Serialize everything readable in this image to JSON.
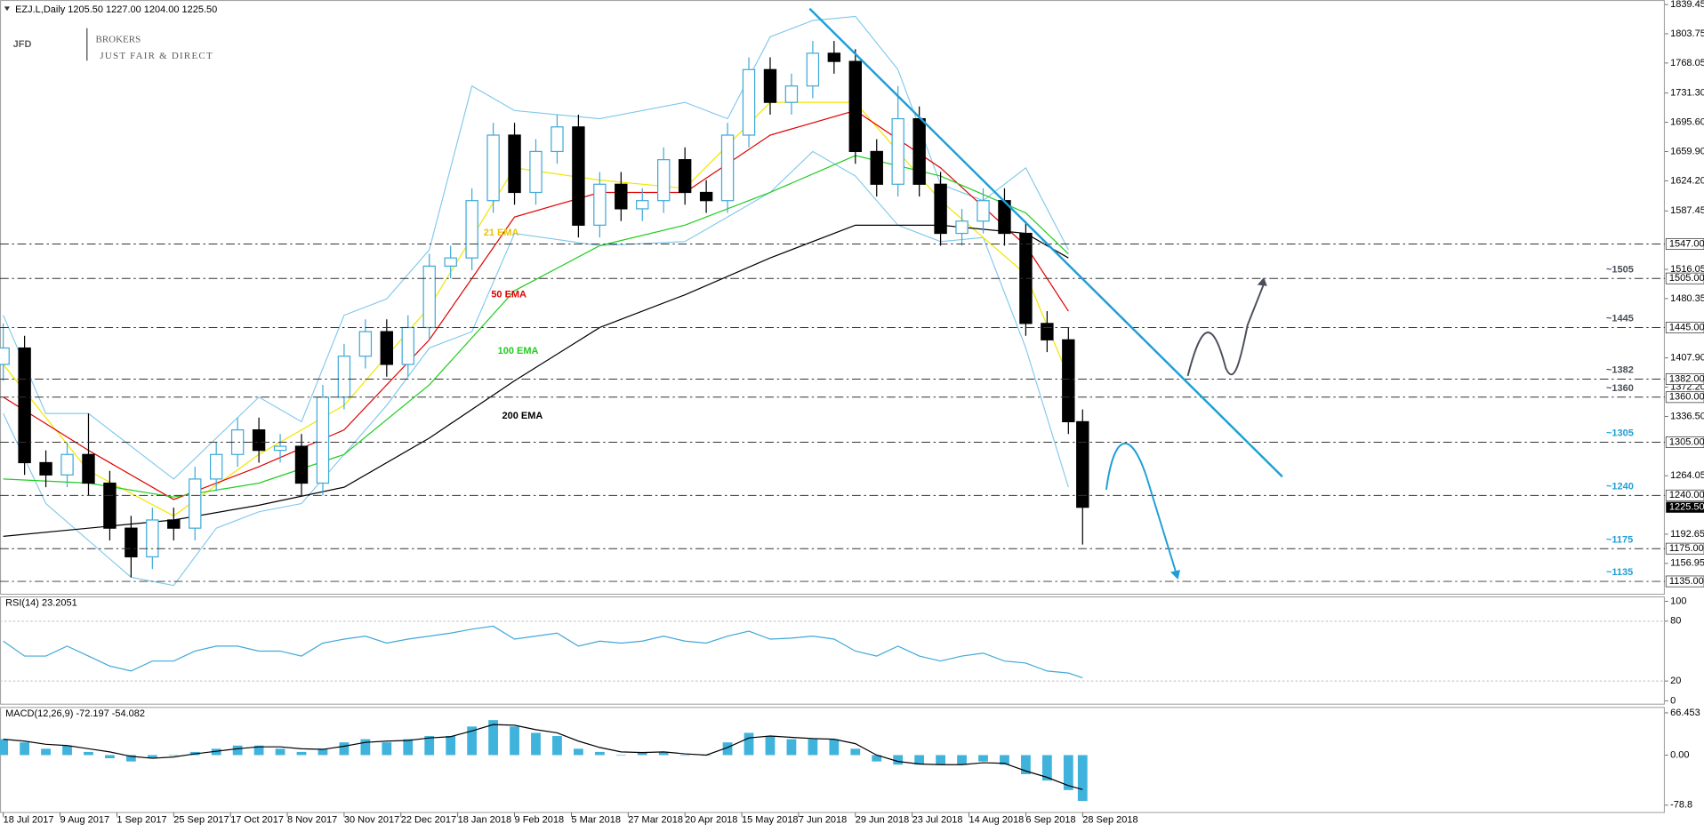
{
  "header": "EZJ.L,Daily  1205.50 1227.00 1204.00 1225.50",
  "logo": {
    "main": "JFD",
    "brand": "BROKERS",
    "tagline": "JUST FAIR & DIRECT"
  },
  "chart_data": [
    {
      "type": "candlestick",
      "x": [
        0,
        6,
        12,
        18,
        24,
        30,
        36,
        42,
        48,
        54,
        60,
        66,
        72,
        78,
        84,
        90,
        96,
        102,
        108,
        114,
        120,
        126,
        132,
        138,
        144,
        150,
        156,
        162,
        168,
        174,
        180,
        186,
        192,
        198,
        204,
        210,
        216,
        222,
        228,
        234,
        240,
        246,
        252,
        258,
        264,
        270,
        276,
        282,
        288,
        294,
        300,
        304
      ],
      "open": [
        1400,
        1420,
        1280,
        1265,
        1290,
        1255,
        1200,
        1165,
        1210,
        1200,
        1260,
        1290,
        1320,
        1295,
        1300,
        1255,
        1360,
        1410,
        1440,
        1400,
        1445,
        1520,
        1530,
        1600,
        1680,
        1610,
        1660,
        1690,
        1570,
        1620,
        1590,
        1600,
        1650,
        1610,
        1600,
        1680,
        1760,
        1720,
        1740,
        1780,
        1770,
        1660,
        1620,
        1700,
        1620,
        1560,
        1575,
        1600,
        1560,
        1450,
        1430,
        1330
      ],
      "high": [
        1450,
        1435,
        1295,
        1305,
        1340,
        1270,
        1215,
        1225,
        1225,
        1275,
        1305,
        1335,
        1335,
        1315,
        1315,
        1375,
        1425,
        1455,
        1455,
        1460,
        1535,
        1545,
        1615,
        1695,
        1695,
        1675,
        1705,
        1705,
        1635,
        1635,
        1615,
        1665,
        1665,
        1625,
        1695,
        1775,
        1775,
        1755,
        1795,
        1795,
        1785,
        1675,
        1740,
        1715,
        1635,
        1590,
        1615,
        1615,
        1575,
        1465,
        1445,
        1345
      ],
      "low": [
        1380,
        1265,
        1250,
        1250,
        1240,
        1185,
        1140,
        1150,
        1185,
        1185,
        1245,
        1275,
        1280,
        1280,
        1240,
        1240,
        1345,
        1395,
        1385,
        1385,
        1430,
        1505,
        1515,
        1585,
        1595,
        1595,
        1645,
        1555,
        1555,
        1575,
        1575,
        1585,
        1595,
        1585,
        1585,
        1665,
        1705,
        1705,
        1725,
        1755,
        1645,
        1605,
        1605,
        1605,
        1545,
        1545,
        1560,
        1545,
        1435,
        1415,
        1315,
        1180
      ],
      "close": [
        1420,
        1280,
        1265,
        1290,
        1255,
        1200,
        1165,
        1210,
        1200,
        1260,
        1290,
        1320,
        1295,
        1300,
        1255,
        1360,
        1410,
        1440,
        1400,
        1445,
        1520,
        1530,
        1600,
        1680,
        1610,
        1660,
        1690,
        1570,
        1620,
        1590,
        1600,
        1650,
        1610,
        1600,
        1680,
        1760,
        1720,
        1740,
        1780,
        1770,
        1660,
        1620,
        1700,
        1620,
        1560,
        1575,
        1600,
        1560,
        1450,
        1430,
        1330,
        1225.5
      ],
      "up_color": "#3fa9d8",
      "down_color": "#000000",
      "xlim": [
        0,
        468
      ],
      "xticks": [
        {
          "value": 0,
          "label": "18 Jul 2017"
        },
        {
          "value": 16,
          "label": "9 Aug 2017"
        },
        {
          "value": 32,
          "label": "1 Sep 2017"
        },
        {
          "value": 48,
          "label": "25 Sep 2017"
        },
        {
          "value": 64,
          "label": "17 Oct 2017"
        },
        {
          "value": 80,
          "label": "8 Nov 2017"
        },
        {
          "value": 96,
          "label": "30 Nov 2017"
        },
        {
          "value": 112,
          "label": "22 Dec 2017"
        },
        {
          "value": 128,
          "label": "18 Jan 2018"
        },
        {
          "value": 144,
          "label": "9 Feb 2018"
        },
        {
          "value": 160,
          "label": "5 Mar 2018"
        },
        {
          "value": 176,
          "label": "27 Mar 2018"
        },
        {
          "value": 192,
          "label": "20 Apr 2018"
        },
        {
          "value": 208,
          "label": "15 May 2018"
        },
        {
          "value": 224,
          "label": "7 Jun 2018"
        },
        {
          "value": 240,
          "label": "29 Jun 2018"
        },
        {
          "value": 256,
          "label": "23 Jul 2018"
        },
        {
          "value": 272,
          "label": "14 Aug 2018"
        },
        {
          "value": 288,
          "label": "6 Sep 2018"
        },
        {
          "value": 304,
          "label": "28 Sep 2018"
        }
      ],
      "ylim": [
        1120,
        1845
      ],
      "yticks": [
        1839.45,
        1803.75,
        1768.05,
        {
          "value": 1731.3,
          "label": "1731.30"
        },
        {
          "value": 1695.6,
          "label": "1695.60"
        },
        {
          "value": 1659.9,
          "label": "1659.90"
        },
        {
          "value": 1624.2,
          "label": "1624.20"
        },
        1587.45,
        1516.05,
        1480.35,
        {
          "value": 1407.9,
          "label": "1407.90"
        },
        {
          "value": 1372.2,
          "label": "1372.20"
        },
        {
          "value": 1336.5,
          "label": "1336.50"
        },
        1264.05,
        1192.65,
        1156.95
      ],
      "lines": [
        {
          "name": "21 EMA",
          "color": "#f2e600",
          "x": [
            0,
            24,
            48,
            72,
            96,
            120,
            144,
            168,
            192,
            216,
            240,
            264,
            288,
            300
          ],
          "values": [
            1400,
            1270,
            1215,
            1290,
            1350,
            1470,
            1640,
            1625,
            1615,
            1720,
            1720,
            1600,
            1510,
            1385
          ]
        },
        {
          "name": "50 EMA",
          "color": "#e00000",
          "x": [
            0,
            24,
            48,
            72,
            96,
            120,
            144,
            168,
            192,
            216,
            240,
            264,
            288,
            300
          ],
          "values": [
            1360,
            1295,
            1235,
            1275,
            1320,
            1430,
            1580,
            1610,
            1610,
            1680,
            1710,
            1640,
            1545,
            1465
          ]
        },
        {
          "name": "100 EMA",
          "color": "#22cc22",
          "x": [
            0,
            24,
            48,
            72,
            96,
            120,
            144,
            168,
            192,
            216,
            240,
            264,
            288,
            300
          ],
          "values": [
            1260,
            1255,
            1238,
            1255,
            1290,
            1375,
            1490,
            1545,
            1570,
            1610,
            1655,
            1630,
            1585,
            1535
          ]
        },
        {
          "name": "200 EMA",
          "color": "#000000",
          "x": [
            0,
            24,
            48,
            72,
            96,
            120,
            144,
            168,
            192,
            216,
            240,
            264,
            288,
            300
          ],
          "values": [
            1190,
            1200,
            1210,
            1228,
            1250,
            1310,
            1380,
            1445,
            1485,
            1530,
            1570,
            1570,
            1560,
            1530
          ]
        }
      ],
      "bands": [
        {
          "color": "#7cc6ea",
          "x": [
            0,
            12,
            24,
            36,
            48,
            72,
            84,
            96,
            108,
            120,
            132,
            144,
            168,
            192,
            204,
            216,
            228,
            240,
            252,
            264,
            276,
            288,
            300
          ],
          "values": [
            1460,
            1340,
            1340,
            1300,
            1260,
            1360,
            1330,
            1460,
            1480,
            1540,
            1740,
            1710,
            1700,
            1720,
            1700,
            1800,
            1820,
            1825,
            1760,
            1620,
            1600,
            1640,
            1540
          ]
        },
        {
          "color": "#7cc6ea",
          "x": [
            0,
            12,
            36,
            48,
            60,
            72,
            84,
            96,
            108,
            120,
            132,
            144,
            168,
            192,
            216,
            228,
            240,
            252,
            264,
            276,
            288,
            300
          ],
          "values": [
            1340,
            1230,
            1140,
            1130,
            1200,
            1220,
            1230,
            1290,
            1350,
            1420,
            1440,
            1560,
            1545,
            1550,
            1610,
            1660,
            1630,
            1570,
            1550,
            1555,
            1420,
            1250
          ]
        }
      ],
      "levels": [
        {
          "value": 1547,
          "label": "1547.00"
        },
        {
          "value": 1505,
          "label": "1505.00",
          "note": "~1505",
          "note_color": "#4a4f5a"
        },
        {
          "value": 1445,
          "label": "1445.00",
          "note": "~1445",
          "note_color": "#4a4f5a"
        },
        {
          "value": 1382,
          "label": "1382.00",
          "note": "~1382",
          "note_color": "#4a4f5a"
        },
        {
          "value": 1360,
          "label": "1360.00",
          "note": "~1360",
          "note_color": "#4a4f5a"
        },
        {
          "value": 1305,
          "label": "1305.00",
          "note": "~1305",
          "note_color": "#1e9fd6"
        },
        {
          "value": 1240,
          "label": "1240.00",
          "note": "~1240",
          "note_color": "#1e9fd6"
        },
        {
          "value": 1175,
          "label": "1175.00",
          "note": "~1175",
          "note_color": "#1e9fd6"
        },
        {
          "value": 1135,
          "label": "1135.00",
          "note": "~1135",
          "note_color": "#1e9fd6"
        }
      ],
      "last_price": {
        "value": 1225.5,
        "label": "1225.50"
      }
    },
    {
      "type": "line",
      "title": "RSI(14) 23.2051",
      "x": [
        0,
        6,
        12,
        18,
        24,
        30,
        36,
        42,
        48,
        54,
        60,
        66,
        72,
        78,
        84,
        90,
        96,
        102,
        108,
        114,
        120,
        126,
        132,
        138,
        144,
        150,
        156,
        162,
        168,
        174,
        180,
        186,
        192,
        198,
        204,
        210,
        216,
        222,
        228,
        234,
        240,
        246,
        252,
        258,
        264,
        270,
        276,
        282,
        288,
        294,
        300,
        304
      ],
      "values": [
        60,
        45,
        45,
        55,
        45,
        35,
        30,
        40,
        40,
        50,
        55,
        55,
        50,
        50,
        45,
        58,
        62,
        65,
        58,
        62,
        65,
        68,
        72,
        75,
        62,
        65,
        68,
        55,
        60,
        58,
        60,
        65,
        60,
        58,
        65,
        70,
        62,
        63,
        65,
        62,
        50,
        45,
        55,
        45,
        40,
        45,
        48,
        40,
        38,
        30,
        28,
        23.2
      ],
      "color": "#3fa9d8",
      "ylim": [
        0,
        100
      ],
      "yticks": [
        0,
        20,
        80,
        100
      ],
      "levels": [
        20,
        80
      ]
    },
    {
      "type": "macd",
      "title": "MACD(12,26,9) -72.197 -54.082",
      "x": [
        0,
        6,
        12,
        18,
        24,
        30,
        36,
        42,
        48,
        54,
        60,
        66,
        72,
        78,
        84,
        90,
        96,
        102,
        108,
        114,
        120,
        126,
        132,
        138,
        144,
        150,
        156,
        162,
        168,
        174,
        180,
        186,
        192,
        198,
        204,
        210,
        216,
        222,
        228,
        234,
        240,
        246,
        252,
        258,
        264,
        270,
        276,
        282,
        288,
        294,
        300,
        304
      ],
      "histogram": [
        25,
        20,
        10,
        15,
        5,
        -5,
        -10,
        -5,
        0,
        5,
        10,
        15,
        15,
        10,
        5,
        10,
        20,
        25,
        20,
        25,
        30,
        30,
        45,
        55,
        45,
        35,
        30,
        10,
        5,
        0,
        5,
        5,
        0,
        0,
        20,
        35,
        30,
        25,
        25,
        25,
        10,
        -10,
        -15,
        -15,
        -15,
        -15,
        -10,
        -15,
        -30,
        -40,
        -55,
        -72.2
      ],
      "signal": [
        25,
        22,
        17,
        15,
        10,
        5,
        -2,
        -5,
        -3,
        2,
        6,
        10,
        13,
        13,
        10,
        9,
        14,
        20,
        22,
        23,
        27,
        29,
        38,
        48,
        47,
        40,
        35,
        22,
        12,
        5,
        4,
        5,
        2,
        0,
        12,
        27,
        30,
        28,
        26,
        25,
        18,
        0,
        -10,
        -14,
        -15,
        -15,
        -12,
        -13,
        -25,
        -35,
        -48,
        -54.1
      ],
      "hist_color": "#3fb3dc",
      "signal_color": "#000000",
      "ylim": [
        -90.3,
        75
      ],
      "yticks": [
        66.453,
        {
          "value": 0,
          "label": "0.00"
        },
        -78.8
      ]
    }
  ]
}
